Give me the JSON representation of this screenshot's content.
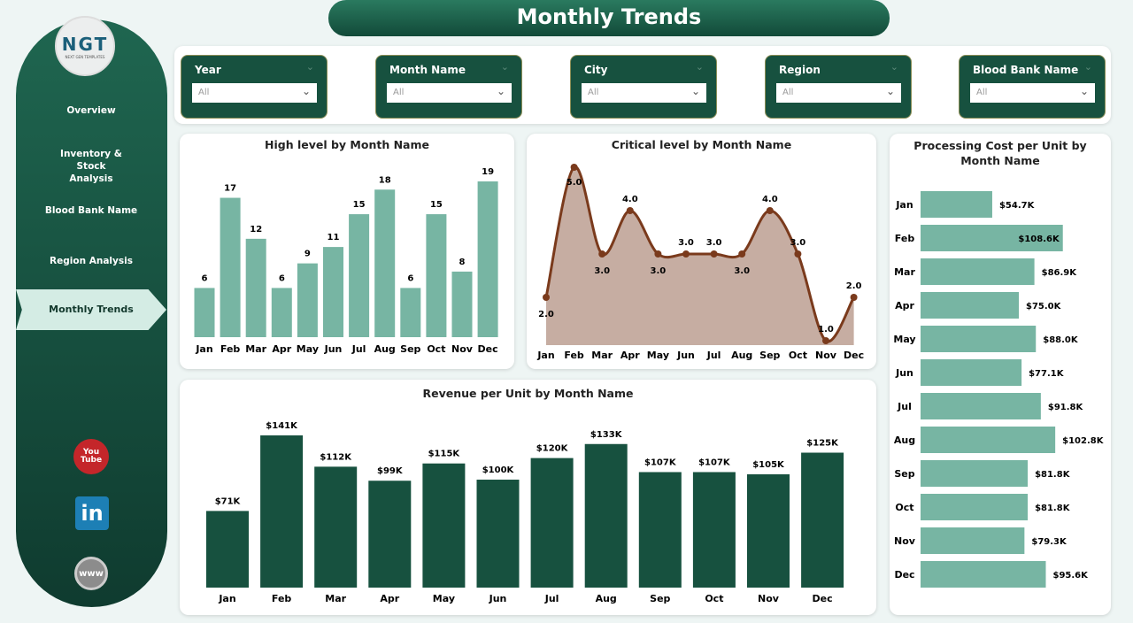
{
  "title": "Monthly Trends",
  "logo": {
    "text": "NGT",
    "subtext": "NEXT GEN TEMPLATES"
  },
  "sidebar": {
    "items": [
      {
        "label": "Overview"
      },
      {
        "label": "Inventory & Stock Analysis"
      },
      {
        "label": "Blood Bank Name"
      },
      {
        "label": "Region Analysis"
      },
      {
        "label": "Monthly Trends",
        "active": true
      }
    ],
    "social": [
      {
        "icon": "youtube-icon",
        "label": "You Tube"
      },
      {
        "icon": "linkedin-icon",
        "label": "in"
      },
      {
        "icon": "www-globe-icon",
        "label": "www"
      }
    ]
  },
  "filters": [
    {
      "label": "Year",
      "value": "All"
    },
    {
      "label": "Month Name",
      "value": "All"
    },
    {
      "label": "City",
      "value": "All"
    },
    {
      "label": "Region",
      "value": "All"
    },
    {
      "label": "Blood Bank Name",
      "value": "All"
    }
  ],
  "colors": {
    "primary": "#17513f",
    "bar_light": "#77b5a3",
    "bar_dark": "#17513f",
    "line": "#7a3a1c",
    "area": "#c6ada2"
  },
  "chart_data": [
    {
      "type": "bar",
      "title": "High level by Month Name",
      "categories": [
        "Jan",
        "Feb",
        "Mar",
        "Apr",
        "May",
        "Jun",
        "Jul",
        "Aug",
        "Sep",
        "Oct",
        "Nov",
        "Dec"
      ],
      "values": [
        6,
        17,
        12,
        6,
        9,
        11,
        15,
        18,
        6,
        15,
        8,
        19
      ],
      "labels": [
        "6",
        "17",
        "12",
        "6",
        "9",
        "11",
        "15",
        "18",
        "6",
        "15",
        "8",
        "19"
      ]
    },
    {
      "type": "area",
      "title": "Critical level by Month Name",
      "categories": [
        "Jan",
        "Feb",
        "Mar",
        "Apr",
        "May",
        "Jun",
        "Jul",
        "Aug",
        "Sep",
        "Oct",
        "Nov",
        "Dec"
      ],
      "values": [
        2,
        5,
        3,
        4,
        3,
        3,
        3,
        3,
        4,
        3,
        1,
        2
      ],
      "labels": [
        "2.0",
        "5.0",
        "3.0",
        "4.0",
        "3.0",
        "3.0",
        "3.0",
        "3.0",
        "4.0",
        "3.0",
        "1.0",
        "2.0"
      ]
    },
    {
      "type": "bar",
      "title": "Revenue per Unit by Month Name",
      "categories": [
        "Jan",
        "Feb",
        "Mar",
        "Apr",
        "May",
        "Jun",
        "Jul",
        "Aug",
        "Sep",
        "Oct",
        "Nov",
        "Dec"
      ],
      "values": [
        71,
        141,
        112,
        99,
        115,
        100,
        120,
        133,
        107,
        107,
        105,
        125
      ],
      "labels": [
        "$71K",
        "$141K",
        "$112K",
        "$99K",
        "$115K",
        "$100K",
        "$120K",
        "$133K",
        "$107K",
        "$107K",
        "$105K",
        "$125K"
      ]
    },
    {
      "type": "bar",
      "orientation": "horizontal",
      "title": "Processing Cost per Unit by Month Name",
      "categories": [
        "Jan",
        "Feb",
        "Mar",
        "Apr",
        "May",
        "Jun",
        "Jul",
        "Aug",
        "Sep",
        "Oct",
        "Nov",
        "Dec"
      ],
      "values": [
        54.7,
        108.6,
        86.9,
        75.0,
        88.0,
        77.1,
        91.8,
        102.8,
        81.8,
        81.8,
        79.3,
        95.6
      ],
      "labels": [
        "$54.7K",
        "$108.6K",
        "$86.9K",
        "$75.0K",
        "$88.0K",
        "$77.1K",
        "$91.8K",
        "$102.8K",
        "$81.8K",
        "$81.8K",
        "$79.3K",
        "$95.6K"
      ]
    }
  ]
}
